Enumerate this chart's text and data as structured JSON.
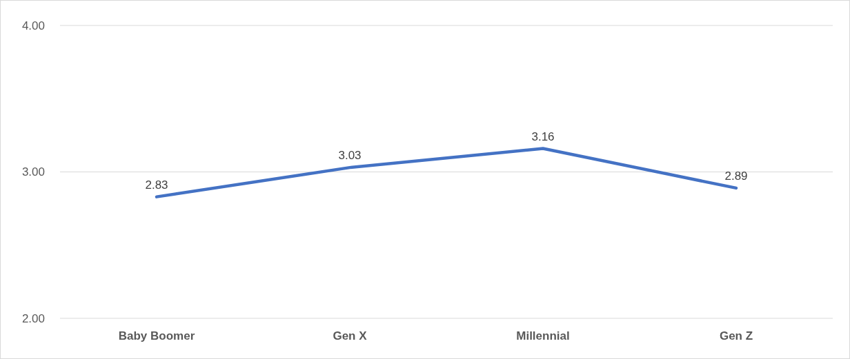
{
  "chart_data": {
    "type": "line",
    "categories": [
      "Baby Boomer",
      "Gen X",
      "Millennial",
      "Gen Z"
    ],
    "series": [
      {
        "color": "#4472c4",
        "values": [
          2.83,
          3.03,
          3.16,
          2.89
        ]
      }
    ],
    "ylim": [
      2,
      4
    ],
    "yticks": [
      {
        "value": 2,
        "label": "2.00"
      },
      {
        "value": 3,
        "label": "3.00"
      },
      {
        "value": 4,
        "label": "4.00"
      }
    ],
    "grid": "y",
    "marker": "none",
    "line_style": "solid",
    "data_labels": true
  }
}
